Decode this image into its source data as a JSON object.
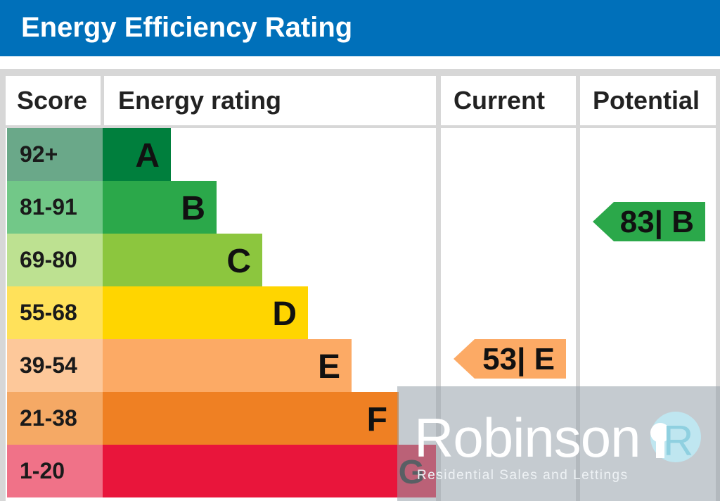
{
  "title": "Energy Efficiency Rating",
  "headers": {
    "score": "Score",
    "rating": "Energy rating",
    "current": "Current",
    "potential": "Potential"
  },
  "bands": [
    {
      "score": "92+",
      "letter": "A",
      "color": "#007f3d",
      "score_color": "#6aa889"
    },
    {
      "score": "81-91",
      "letter": "B",
      "color": "#2ba84a",
      "score_color": "#72c888"
    },
    {
      "score": "69-80",
      "letter": "C",
      "color": "#8cc63e",
      "score_color": "#bde191"
    },
    {
      "score": "55-68",
      "letter": "D",
      "color": "#ffd500",
      "score_color": "#ffe15a"
    },
    {
      "score": "39-54",
      "letter": "E",
      "color": "#fcaa65",
      "score_color": "#fdc89a"
    },
    {
      "score": "21-38",
      "letter": "F",
      "color": "#ef8023",
      "score_color": "#f5a965"
    },
    {
      "score": "1-20",
      "letter": "G",
      "color": "#e9153b",
      "score_color": "#f07288"
    }
  ],
  "current": {
    "label": "53| E",
    "value": 53,
    "band": "E",
    "color": "#fcaa65"
  },
  "potential": {
    "label": "83| B",
    "value": 83,
    "band": "B",
    "color": "#2ba84a"
  },
  "watermark": {
    "name": "Robinson",
    "tagline": "Residential Sales and Lettings"
  },
  "chart_data": {
    "type": "table",
    "title": "Energy Efficiency Rating",
    "columns": [
      "Score",
      "Energy rating",
      "Current",
      "Potential"
    ],
    "rows": [
      [
        "92+",
        "A"
      ],
      [
        "81-91",
        "B"
      ],
      [
        "69-80",
        "C"
      ],
      [
        "55-68",
        "D"
      ],
      [
        "39-54",
        "E"
      ],
      [
        "21-38",
        "F"
      ],
      [
        "1-20",
        "G"
      ]
    ],
    "current": {
      "value": 53,
      "band": "E"
    },
    "potential": {
      "value": 83,
      "band": "B"
    }
  }
}
